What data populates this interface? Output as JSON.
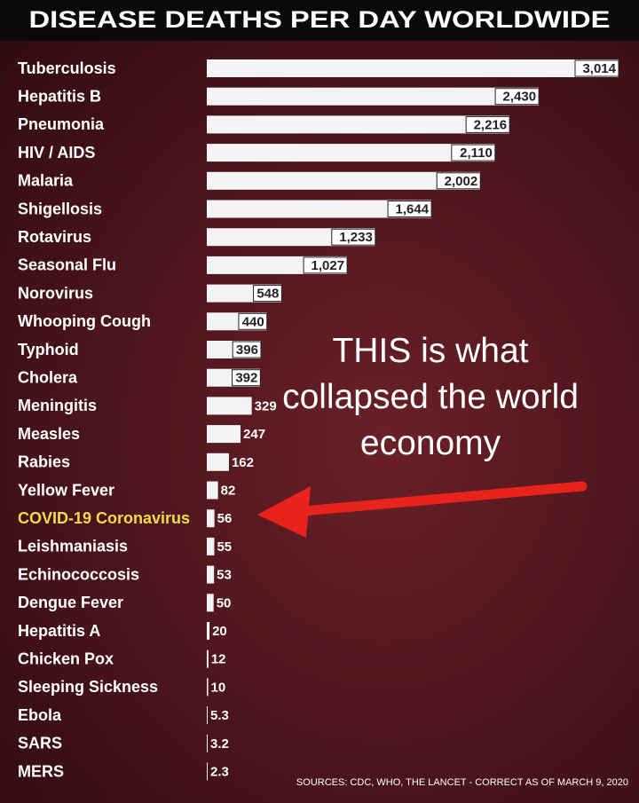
{
  "chart_data": {
    "type": "bar",
    "orientation": "horizontal",
    "title": "DISEASE DEATHS PER DAY WORLDWIDE",
    "categories": [
      "Tuberculosis",
      "Hepatitis B",
      "Pneumonia",
      "HIV / AIDS",
      "Malaria",
      "Shigellosis",
      "Rotavirus",
      "Seasonal Flu",
      "Norovirus",
      "Whooping Cough",
      "Typhoid",
      "Cholera",
      "Meningitis",
      "Measles",
      "Rabies",
      "Yellow Fever",
      "COVID-19 Coronavirus",
      "Leishmaniasis",
      "Echinococcosis",
      "Dengue Fever",
      "Hepatitis A",
      "Chicken Pox",
      "Sleeping Sickness",
      "Ebola",
      "SARS",
      "MERS"
    ],
    "values": [
      3014,
      2430,
      2216,
      2110,
      2002,
      1644,
      1233,
      1027,
      548,
      440,
      396,
      392,
      329,
      247,
      162,
      82,
      56,
      55,
      53,
      50,
      20,
      12,
      10,
      5.3,
      3.2,
      2.3
    ],
    "value_labels": [
      "3,014",
      "2,430",
      "2,216",
      "2,110",
      "2,002",
      "1,644",
      "1,233",
      "1,027",
      "548",
      "440",
      "396",
      "392",
      "329",
      "247",
      "162",
      "82",
      "56",
      "55",
      "53",
      "50",
      "20",
      "12",
      "10",
      "5.3",
      "3.2",
      "2.3"
    ],
    "color": "#f4f4f4",
    "highlight": {
      "index": 16,
      "color": "#f2dc4b"
    },
    "annotation": "THIS is what collapsed the world economy",
    "source": "SOURCES: CDC, WHO, THE LANCET - CORRECT AS OF MARCH 9, 2020"
  }
}
